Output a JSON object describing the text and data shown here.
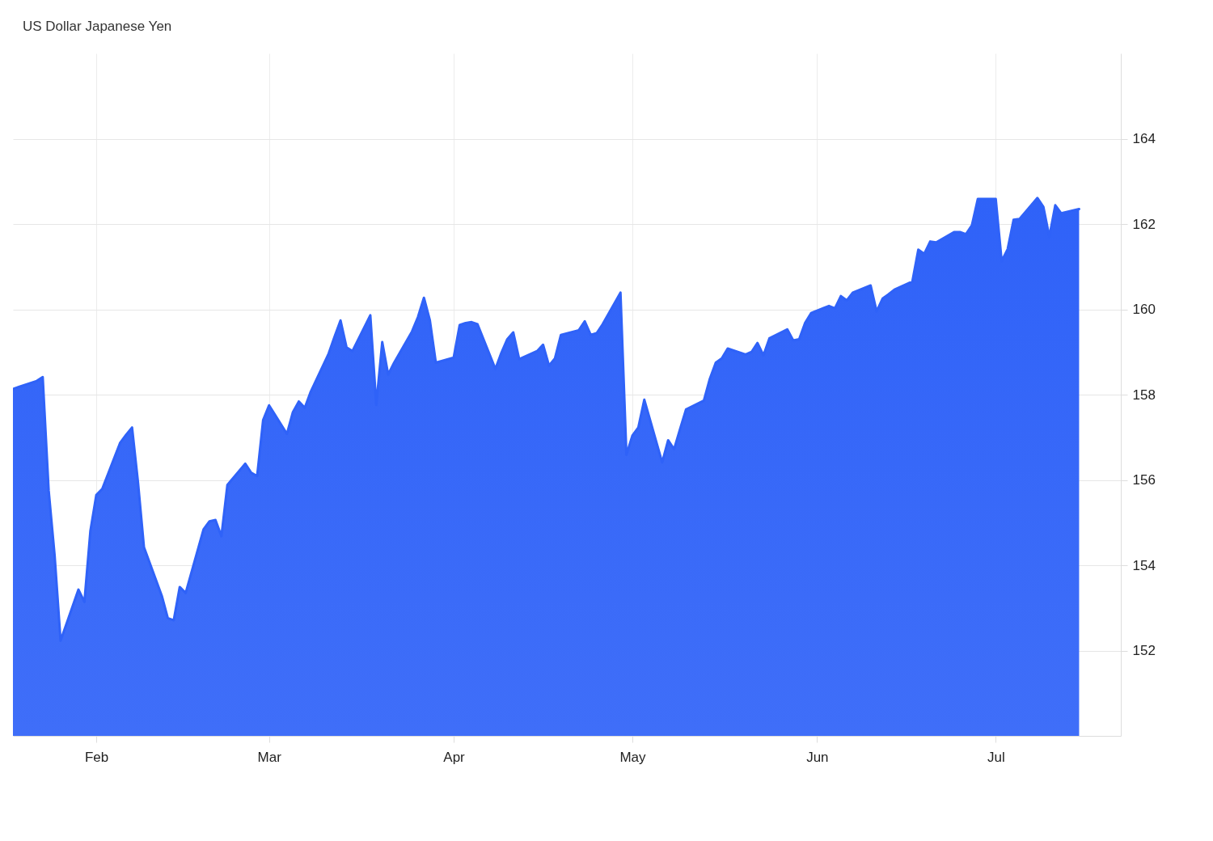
{
  "chart_data": {
    "type": "area",
    "title": "US Dollar Japanese Yen",
    "x": [
      "--01-18",
      "--01-19",
      "--01-22",
      "--01-23",
      "--01-24",
      "--01-25",
      "--01-26",
      "--01-29",
      "--01-30",
      "--01-31",
      "--02-01",
      "--02-02",
      "--02-05",
      "--02-06",
      "--02-07",
      "--02-08",
      "--02-09",
      "--02-12",
      "--02-13",
      "--02-14",
      "--02-15",
      "--02-16",
      "--02-19",
      "--02-20",
      "--02-21",
      "--02-22",
      "--02-23",
      "--02-26",
      "--02-27",
      "--02-28",
      "--02-29",
      "--03-01",
      "--03-04",
      "--03-05",
      "--03-06",
      "--03-07",
      "--03-08",
      "--03-11",
      "--03-12",
      "--03-13",
      "--03-14",
      "--03-15",
      "--03-18",
      "--03-19",
      "--03-20",
      "--03-21",
      "--03-22",
      "--03-25",
      "--03-26",
      "--03-27",
      "--03-28",
      "--03-29",
      "--04-01",
      "--04-02",
      "--04-03",
      "--04-04",
      "--04-05",
      "--04-08",
      "--04-09",
      "--04-10",
      "--04-11",
      "--04-12",
      "--04-15",
      "--04-16",
      "--04-17",
      "--04-18",
      "--04-19",
      "--04-22",
      "--04-23",
      "--04-24",
      "--04-25",
      "--04-26",
      "--04-29",
      "--04-30",
      "--05-01",
      "--05-02",
      "--05-03",
      "--05-06",
      "--05-07",
      "--05-08",
      "--05-09",
      "--05-10",
      "--05-13",
      "--05-14",
      "--05-15",
      "--05-16",
      "--05-17",
      "--05-20",
      "--05-21",
      "--05-22",
      "--05-23",
      "--05-24",
      "--05-27",
      "--05-28",
      "--05-29",
      "--05-30",
      "--05-31",
      "--06-03",
      "--06-04",
      "--06-05",
      "--06-06",
      "--06-07",
      "--06-10",
      "--06-11",
      "--06-12",
      "--06-13",
      "--06-14",
      "--06-17",
      "--06-18",
      "--06-19",
      "--06-20",
      "--06-21",
      "--06-24",
      "--06-25",
      "--06-26",
      "--06-27",
      "--06-28",
      "--07-01",
      "--07-02",
      "--07-03",
      "--07-04",
      "--07-05",
      "--07-08",
      "--07-09",
      "--07-10",
      "--07-11",
      "--07-12",
      "--07-15"
    ],
    "series": [
      {
        "color": "#2f62f8",
        "values": [
          158.13,
          158.18,
          158.32,
          158.41,
          155.75,
          154.23,
          152.23,
          153.43,
          153.14,
          154.8,
          155.65,
          155.79,
          156.87,
          157.06,
          157.23,
          155.94,
          154.42,
          153.28,
          152.76,
          152.71,
          153.49,
          153.35,
          154.84,
          155.03,
          155.06,
          154.68,
          155.88,
          156.38,
          156.17,
          156.09,
          157.4,
          157.75,
          157.08,
          157.59,
          157.84,
          157.69,
          158.07,
          158.96,
          159.36,
          159.74,
          159.11,
          159.02,
          159.86,
          157.76,
          159.23,
          158.47,
          158.75,
          159.48,
          159.82,
          160.27,
          159.74,
          158.75,
          158.87,
          159.63,
          159.68,
          159.7,
          159.65,
          158.6,
          158.98,
          159.3,
          159.46,
          158.83,
          159.02,
          159.17,
          158.68,
          158.85,
          159.4,
          159.51,
          159.72,
          159.4,
          159.44,
          159.65,
          160.39,
          156.59,
          157.04,
          157.23,
          157.88,
          156.41,
          156.93,
          156.72,
          157.19,
          157.65,
          157.86,
          158.37,
          158.75,
          158.85,
          159.08,
          158.94,
          159.0,
          159.21,
          158.92,
          159.32,
          159.53,
          159.27,
          159.3,
          159.68,
          159.91,
          160.08,
          160.02,
          160.31,
          160.21,
          160.39,
          160.56,
          159.95,
          160.25,
          160.35,
          160.46,
          160.65,
          161.4,
          161.3,
          161.59,
          161.57,
          161.81,
          161.81,
          161.76,
          161.97,
          162.59,
          162.59,
          161.13,
          161.41,
          162.1,
          162.12,
          162.61,
          162.4,
          161.7,
          162.44,
          162.25,
          162.35
        ]
      }
    ],
    "xlim": [
      "--01-18",
      "--07-22"
    ],
    "xticks": [
      {
        "value": "--02-01",
        "label": "Feb"
      },
      {
        "value": "--03-01",
        "label": "Mar"
      },
      {
        "value": "--04-01",
        "label": "Apr"
      },
      {
        "value": "--05-01",
        "label": "May"
      },
      {
        "value": "--06-01",
        "label": "Jun"
      },
      {
        "value": "--07-01",
        "label": "Jul"
      }
    ],
    "ylim": [
      150,
      166
    ],
    "yticks": [
      152,
      154,
      156,
      158,
      160,
      162,
      164
    ],
    "grid": true
  }
}
